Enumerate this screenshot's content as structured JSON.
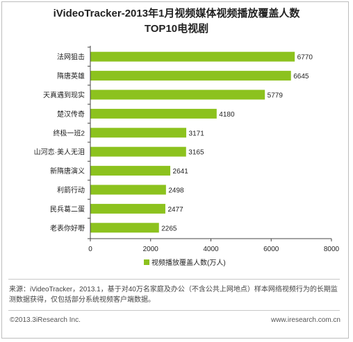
{
  "chart_data": {
    "type": "bar",
    "orientation": "horizontal",
    "title": "iVideoTracker-2013年1月视频媒体视频播放覆盖人数",
    "subtitle": "TOP10电视剧",
    "categories": [
      "法网狙击",
      "隋唐英雄",
      "天真遇到现实",
      "楚汉传奇",
      "终极一班2",
      "山河恋·美人无泪",
      "新隋唐演义",
      "利箭行动",
      "民兵葛二蛋",
      "老表你好嘢"
    ],
    "values": [
      6770,
      6645,
      5779,
      4180,
      3171,
      3165,
      2641,
      2498,
      2477,
      2265
    ],
    "xlim": [
      0,
      8000
    ],
    "x_ticks": [
      "0",
      "2000",
      "4000",
      "6000",
      "8000"
    ],
    "legend": "视频播放覆盖人数(万人)",
    "legend_position": "bottom",
    "grid": false,
    "bar_color": "#8cc21e"
  },
  "source_text": "来源：iVideoTracker，2013.1，基于对40万名家庭及办公（不含公共上网地点）样本网络视频行为的长期监测数据获得，仅包括部分系统视频客户端数据。",
  "footer": {
    "copyright": "©2013.3iResearch Inc.",
    "website": "www.iresearch.com.cn"
  }
}
